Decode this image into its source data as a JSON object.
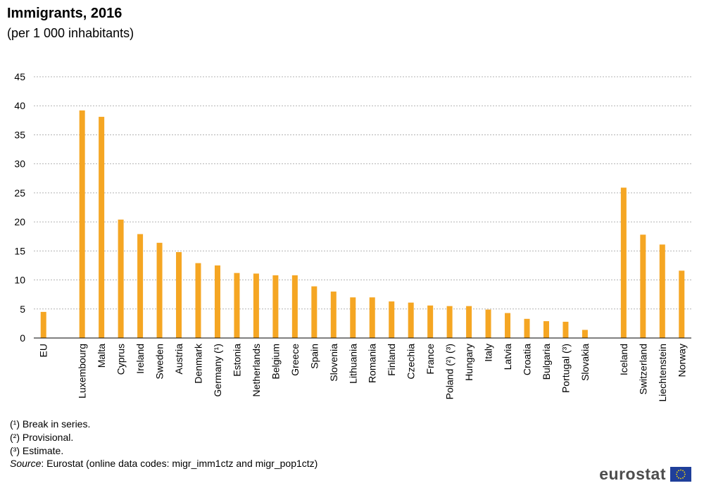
{
  "header": {
    "title": "Immigrants, 2016",
    "subtitle": "(per 1 000 inhabitants)"
  },
  "chart_data": {
    "type": "bar",
    "categories": [
      "EU",
      "",
      "Luxembourg",
      "Malta",
      "Cyprus",
      "Ireland",
      "Sweden",
      "Austria",
      "Denmark",
      "Germany (¹)",
      "Estonia",
      "Netherlands",
      "Belgium",
      "Greece",
      "Spain",
      "Slovenia",
      "Lithuania",
      "Romania",
      "Finland",
      "Czechia",
      "France",
      "Poland (²) (³)",
      "Hungary",
      "Italy",
      "Latvia",
      "Croatia",
      "Bulgaria",
      "Portugal (³)",
      "Slovakia",
      "",
      "Iceland",
      "Switzerland",
      "Liechtenstein",
      "Norway"
    ],
    "values": [
      4.5,
      null,
      39.2,
      38.1,
      20.4,
      17.9,
      16.4,
      14.8,
      12.9,
      12.5,
      11.2,
      11.1,
      10.8,
      10.8,
      8.9,
      8.0,
      7.0,
      7.0,
      6.3,
      6.1,
      5.6,
      5.5,
      5.5,
      4.9,
      4.3,
      3.3,
      2.9,
      2.8,
      1.4,
      null,
      25.9,
      17.8,
      16.1,
      11.6
    ],
    "ylim": [
      0,
      45
    ],
    "yticks": [
      0,
      5,
      10,
      15,
      20,
      25,
      30,
      35,
      40,
      45
    ],
    "grid": true,
    "bar_color": "#f5a623"
  },
  "footnotes": [
    "(¹) Break in series.",
    "(²) Provisional.",
    "(³) Estimate."
  ],
  "source": {
    "label": "Source",
    "text": ": Eurostat (online data codes: migr_imm1ctz and migr_pop1ctz)"
  },
  "logo": {
    "text": "eurostat",
    "flag_color": "#1f3f9a",
    "star_color": "#ffdd00"
  }
}
